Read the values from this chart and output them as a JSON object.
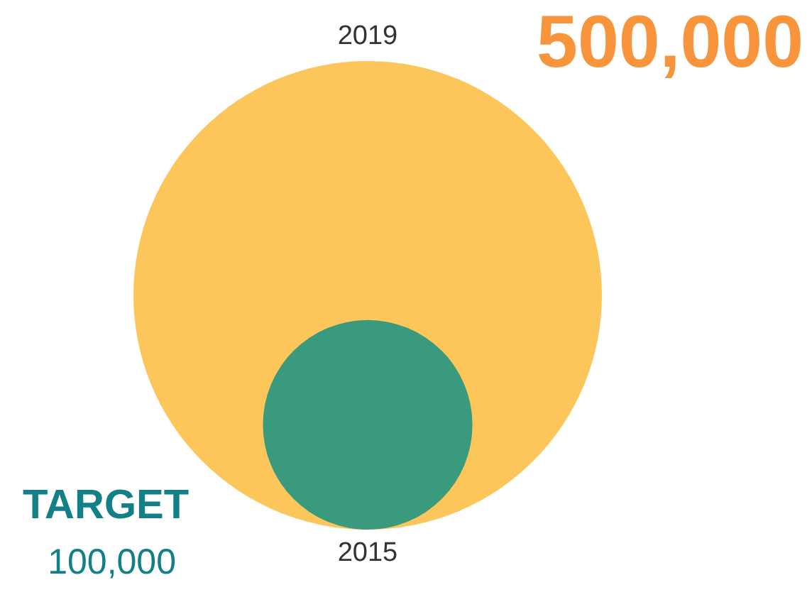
{
  "chart_data": {
    "type": "other",
    "categories": [
      "2019",
      "2015"
    ],
    "values": [
      500000,
      100000
    ],
    "value_labels": [
      "500,000",
      "100,000"
    ],
    "colors": [
      "#fcc65a",
      "#3a9a7e"
    ],
    "annotations": [
      "TARGET"
    ]
  }
}
